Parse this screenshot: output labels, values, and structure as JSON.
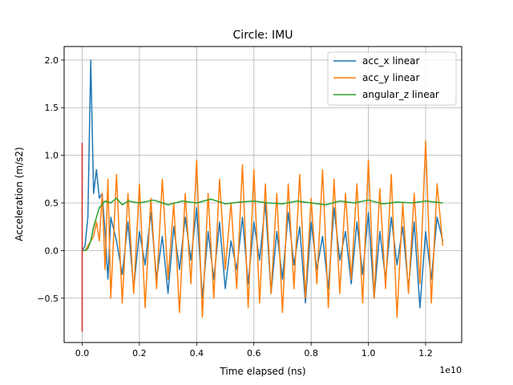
{
  "chart_data": {
    "type": "line",
    "title": "Circle: IMU",
    "xlabel": "Time elapsed (ns)",
    "ylabel": "Acceleration (m/s2)",
    "x_offset_label": "1e10",
    "xlim": [
      -0.063,
      1.326
    ],
    "ylim": [
      -0.965,
      2.142
    ],
    "x_ticks": [
      0.0,
      0.2,
      0.4,
      0.6,
      0.8,
      1.0,
      1.2
    ],
    "x_tick_labels": [
      "0.0",
      "0.2",
      "0.4",
      "0.6",
      "0.8",
      "1.0",
      "1.2"
    ],
    "y_ticks": [
      -0.5,
      0.0,
      0.5,
      1.0,
      1.5,
      2.0
    ],
    "y_tick_labels": [
      "−0.5",
      "0.0",
      "0.5",
      "1.0",
      "1.5",
      "2.0"
    ],
    "grid": true,
    "legend_position": "upper-right",
    "series": [
      {
        "name": "acc_x linear",
        "color": "#1f77b4",
        "x": [
          0.0,
          0.01,
          0.02,
          0.03,
          0.04,
          0.05,
          0.06,
          0.07,
          0.08,
          0.09,
          0.1,
          0.12,
          0.14,
          0.16,
          0.18,
          0.2,
          0.22,
          0.24,
          0.26,
          0.28,
          0.3,
          0.32,
          0.34,
          0.36,
          0.38,
          0.4,
          0.42,
          0.44,
          0.46,
          0.48,
          0.5,
          0.52,
          0.54,
          0.56,
          0.58,
          0.6,
          0.62,
          0.64,
          0.66,
          0.68,
          0.7,
          0.72,
          0.74,
          0.76,
          0.78,
          0.8,
          0.82,
          0.84,
          0.86,
          0.88,
          0.9,
          0.92,
          0.94,
          0.96,
          0.98,
          1.0,
          1.02,
          1.04,
          1.06,
          1.08,
          1.1,
          1.12,
          1.14,
          1.16,
          1.18,
          1.2,
          1.22,
          1.24,
          1.26
        ],
        "values": [
          0.0,
          0.05,
          0.35,
          2.0,
          0.6,
          0.85,
          0.55,
          0.6,
          0.2,
          -0.3,
          0.35,
          0.1,
          -0.25,
          0.3,
          -0.4,
          0.2,
          -0.15,
          0.4,
          -0.3,
          0.15,
          -0.45,
          0.25,
          -0.2,
          0.35,
          -0.1,
          0.45,
          -0.5,
          0.2,
          -0.3,
          0.3,
          -0.4,
          0.1,
          -0.2,
          0.35,
          -0.35,
          0.3,
          -0.1,
          0.5,
          -0.45,
          0.2,
          -0.3,
          0.4,
          -0.15,
          0.25,
          -0.55,
          0.3,
          -0.2,
          0.15,
          -0.4,
          0.45,
          -0.1,
          0.2,
          -0.35,
          0.3,
          -0.25,
          0.4,
          -0.5,
          0.2,
          -0.3,
          0.35,
          -0.15,
          0.25,
          -0.4,
          0.3,
          -0.6,
          0.2,
          -0.3,
          0.35,
          0.1
        ]
      },
      {
        "name": "acc_y linear",
        "color": "#ff7f0e",
        "x": [
          0.0,
          0.01,
          0.02,
          0.03,
          0.04,
          0.05,
          0.06,
          0.07,
          0.08,
          0.09,
          0.1,
          0.12,
          0.14,
          0.16,
          0.18,
          0.2,
          0.22,
          0.24,
          0.26,
          0.28,
          0.3,
          0.32,
          0.34,
          0.36,
          0.38,
          0.4,
          0.42,
          0.44,
          0.46,
          0.48,
          0.5,
          0.52,
          0.54,
          0.56,
          0.58,
          0.6,
          0.62,
          0.64,
          0.66,
          0.68,
          0.7,
          0.72,
          0.74,
          0.76,
          0.78,
          0.8,
          0.82,
          0.84,
          0.86,
          0.88,
          0.9,
          0.92,
          0.94,
          0.96,
          0.98,
          1.0,
          1.02,
          1.04,
          1.06,
          1.08,
          1.1,
          1.12,
          1.14,
          1.16,
          1.18,
          1.2,
          1.22,
          1.24,
          1.26
        ],
        "values": [
          0.0,
          0.0,
          0.05,
          0.1,
          0.15,
          0.3,
          0.1,
          0.6,
          -0.2,
          0.75,
          -0.5,
          0.8,
          -0.55,
          0.6,
          -0.45,
          0.7,
          -0.6,
          0.55,
          -0.4,
          0.75,
          -0.3,
          0.5,
          -0.65,
          0.6,
          -0.35,
          0.95,
          -0.7,
          0.6,
          -0.5,
          0.75,
          -0.2,
          0.5,
          -0.4,
          0.9,
          -0.6,
          0.85,
          -0.55,
          0.7,
          -0.45,
          0.6,
          -0.65,
          0.7,
          -0.4,
          0.8,
          -0.5,
          0.55,
          -0.35,
          0.85,
          -0.6,
          0.75,
          -0.45,
          0.6,
          -0.3,
          0.7,
          -0.55,
          0.95,
          -0.5,
          0.65,
          -0.4,
          0.8,
          -0.7,
          0.5,
          -0.45,
          0.6,
          -0.35,
          1.15,
          -0.55,
          0.7,
          0.05
        ]
      },
      {
        "name": "angular_z linear",
        "color": "#2ca02c",
        "x": [
          0.0,
          0.01,
          0.02,
          0.03,
          0.04,
          0.05,
          0.06,
          0.08,
          0.1,
          0.12,
          0.14,
          0.16,
          0.2,
          0.25,
          0.3,
          0.35,
          0.4,
          0.45,
          0.5,
          0.55,
          0.6,
          0.65,
          0.7,
          0.75,
          0.8,
          0.85,
          0.9,
          0.95,
          1.0,
          1.05,
          1.1,
          1.15,
          1.2,
          1.26
        ],
        "values": [
          0.0,
          0.0,
          0.02,
          0.1,
          0.25,
          0.35,
          0.45,
          0.52,
          0.5,
          0.55,
          0.48,
          0.52,
          0.5,
          0.53,
          0.48,
          0.52,
          0.5,
          0.54,
          0.49,
          0.51,
          0.52,
          0.5,
          0.49,
          0.52,
          0.5,
          0.48,
          0.52,
          0.5,
          0.53,
          0.49,
          0.51,
          0.5,
          0.52,
          0.5
        ]
      }
    ],
    "extra_line": {
      "color": "#d62728",
      "x": [
        0.0,
        0.0
      ],
      "values": [
        -0.85,
        1.13
      ]
    }
  }
}
